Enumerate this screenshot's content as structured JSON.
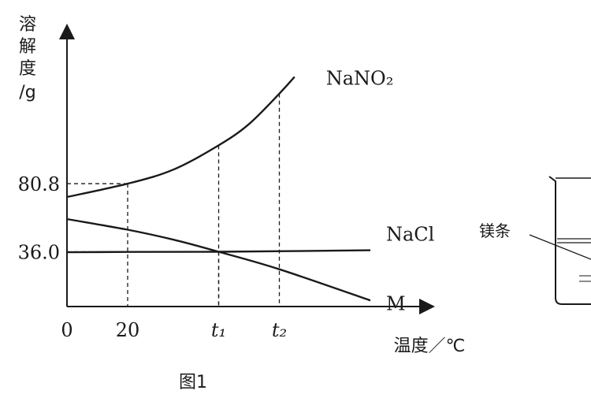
{
  "chart_data": {
    "type": "line",
    "caption": "图1",
    "ylabel": [
      "溶",
      "解",
      "度",
      "/g"
    ],
    "xlabel": "温度／℃",
    "x_tick_labels": [
      {
        "x": 0,
        "label": "0"
      },
      {
        "x": 20,
        "label": "20"
      },
      {
        "x": 50,
        "label": "t₁"
      },
      {
        "x": 70,
        "label": "t₂"
      }
    ],
    "y_tick_labels": [
      {
        "y": 80.8,
        "label": "80.8"
      },
      {
        "y": 36.0,
        "label": "36.0"
      }
    ],
    "xlim": [
      0,
      120
    ],
    "ylim": [
      0,
      160
    ],
    "grid": false,
    "series": [
      {
        "name": "NaNO₂",
        "x": [
          0,
          20,
          35,
          50,
          60,
          70,
          75
        ],
        "y": [
          72,
          80.8,
          90,
          106,
          120,
          140,
          151
        ]
      },
      {
        "name": "NaCl",
        "x": [
          0,
          20,
          50,
          100
        ],
        "y": [
          35.7,
          35.9,
          36.0,
          37.0
        ]
      },
      {
        "name": "M",
        "x": [
          0,
          20,
          35,
          50,
          70,
          100
        ],
        "y": [
          57.5,
          50.5,
          44,
          36.0,
          24.5,
          4
        ]
      }
    ],
    "guides": [
      {
        "x": 20,
        "y": 80.8
      },
      {
        "x": 50,
        "y": 36.0
      },
      {
        "x": 50,
        "y": 106
      },
      {
        "x": 70,
        "y": 140
      }
    ],
    "side_figure": {
      "label": "镁条"
    }
  }
}
